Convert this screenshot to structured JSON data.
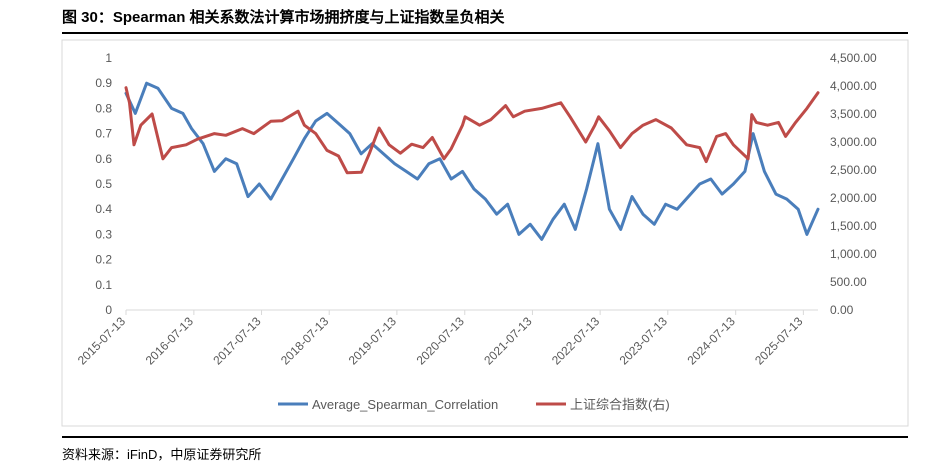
{
  "header": {
    "title": "图 30：Spearman 相关系数法计算市场拥挤度与上证指数呈负相关"
  },
  "footer": {
    "source": "资料来源：iFinD，中原证券研究所"
  },
  "colors": {
    "correlation": "#4a7ebb",
    "index": "#be4b48",
    "axis": "#d9d9d9",
    "border": "#d9d9d9"
  },
  "chart_data": {
    "type": "line",
    "x_tick_labels": [
      "2015-07-13",
      "2016-07-13",
      "2017-07-13",
      "2018-07-13",
      "2019-07-13",
      "2020-07-13",
      "2021-07-13",
      "2022-07-13",
      "2023-07-13",
      "2024-07-13",
      "2025-07-13"
    ],
    "x_range": [
      "2015-07-13",
      "2025-09-30"
    ],
    "left_axis": {
      "min": 0,
      "max": 1,
      "ticks": [
        "0",
        "0.1",
        "0.2",
        "0.3",
        "0.4",
        "0.5",
        "0.6",
        "0.7",
        "0.8",
        "0.9",
        "1"
      ]
    },
    "right_axis": {
      "min": 0,
      "max": 4500,
      "ticks": [
        "0.00",
        "500.00",
        "1,000.00",
        "1,500.00",
        "2,000.00",
        "2,500.00",
        "3,000.00",
        "3,500.00",
        "4,000.00",
        "4,500.00"
      ]
    },
    "legend_position": "bottom",
    "grid": false,
    "series": [
      {
        "name": "Average_Spearman_Correlation",
        "axis": "left",
        "color": "#4a7ebb",
        "x": [
          "2015-07-13",
          "2015-09-01",
          "2015-11-01",
          "2016-01-01",
          "2016-03-15",
          "2016-05-15",
          "2016-07-01",
          "2016-09-01",
          "2016-11-01",
          "2017-01-01",
          "2017-03-01",
          "2017-05-01",
          "2017-07-01",
          "2017-09-01",
          "2017-11-01",
          "2018-01-01",
          "2018-03-01",
          "2018-05-01",
          "2018-07-01",
          "2018-09-01",
          "2018-11-01",
          "2019-01-01",
          "2019-03-01",
          "2019-05-01",
          "2019-07-01",
          "2019-09-01",
          "2019-11-01",
          "2020-01-01",
          "2020-03-01",
          "2020-05-01",
          "2020-07-01",
          "2020-09-01",
          "2020-11-01",
          "2021-01-01",
          "2021-03-01",
          "2021-05-01",
          "2021-07-01",
          "2021-09-01",
          "2021-11-01",
          "2022-01-01",
          "2022-03-01",
          "2022-05-01",
          "2022-07-01",
          "2022-09-01",
          "2022-11-01",
          "2023-01-01",
          "2023-03-01",
          "2023-05-01",
          "2023-07-01",
          "2023-09-01",
          "2023-11-01",
          "2024-01-01",
          "2024-03-01",
          "2024-05-01",
          "2024-07-01",
          "2024-09-01",
          "2024-10-15",
          "2024-12-15",
          "2025-02-15",
          "2025-04-15",
          "2025-06-15",
          "2025-08-01",
          "2025-09-30"
        ],
        "y": [
          0.86,
          0.78,
          0.9,
          0.88,
          0.8,
          0.78,
          0.72,
          0.66,
          0.55,
          0.6,
          0.58,
          0.45,
          0.5,
          0.44,
          0.52,
          0.6,
          0.68,
          0.75,
          0.78,
          0.74,
          0.7,
          0.62,
          0.66,
          0.62,
          0.58,
          0.55,
          0.52,
          0.58,
          0.6,
          0.52,
          0.55,
          0.48,
          0.44,
          0.38,
          0.42,
          0.3,
          0.34,
          0.28,
          0.36,
          0.42,
          0.32,
          0.48,
          0.66,
          0.4,
          0.32,
          0.45,
          0.38,
          0.34,
          0.42,
          0.4,
          0.45,
          0.5,
          0.52,
          0.46,
          0.5,
          0.55,
          0.7,
          0.55,
          0.46,
          0.44,
          0.4,
          0.3,
          0.4
        ]
      },
      {
        "name": "上证综合指数(右)",
        "axis": "right",
        "color": "#be4b48",
        "x": [
          "2015-07-13",
          "2015-08-01",
          "2015-08-25",
          "2015-10-01",
          "2015-12-01",
          "2016-01-28",
          "2016-03-15",
          "2016-06-01",
          "2016-08-01",
          "2016-11-01",
          "2017-01-01",
          "2017-04-01",
          "2017-06-01",
          "2017-09-01",
          "2017-11-01",
          "2018-01-26",
          "2018-03-01",
          "2018-05-01",
          "2018-07-01",
          "2018-09-01",
          "2018-10-18",
          "2019-01-03",
          "2019-02-15",
          "2019-04-08",
          "2019-06-01",
          "2019-08-01",
          "2019-10-01",
          "2019-12-01",
          "2020-01-20",
          "2020-03-23",
          "2020-05-01",
          "2020-07-01",
          "2020-07-15",
          "2020-10-01",
          "2020-12-01",
          "2021-02-18",
          "2021-04-01",
          "2021-06-01",
          "2021-09-01",
          "2021-12-13",
          "2022-02-01",
          "2022-04-26",
          "2022-06-15",
          "2022-07-05",
          "2022-09-01",
          "2022-10-31",
          "2023-01-01",
          "2023-03-01",
          "2023-05-09",
          "2023-08-01",
          "2023-10-23",
          "2024-01-01",
          "2024-02-05",
          "2024-04-01",
          "2024-05-20",
          "2024-07-01",
          "2024-09-18",
          "2024-10-08",
          "2024-11-01",
          "2025-01-01",
          "2025-03-01",
          "2025-04-08",
          "2025-06-01",
          "2025-08-01",
          "2025-09-30"
        ],
        "y": [
          3970,
          3700,
          2950,
          3300,
          3500,
          2700,
          2900,
          2950,
          3050,
          3150,
          3120,
          3240,
          3150,
          3370,
          3380,
          3550,
          3300,
          3150,
          2850,
          2750,
          2450,
          2460,
          2800,
          3250,
          2950,
          2800,
          2960,
          2900,
          3080,
          2700,
          2880,
          3300,
          3450,
          3300,
          3400,
          3650,
          3450,
          3550,
          3600,
          3700,
          3450,
          3000,
          3300,
          3450,
          3200,
          2900,
          3150,
          3300,
          3400,
          3250,
          2950,
          2900,
          2650,
          3100,
          3150,
          2950,
          2700,
          3490,
          3350,
          3300,
          3350,
          3100,
          3350,
          3600,
          3880
        ]
      }
    ]
  }
}
